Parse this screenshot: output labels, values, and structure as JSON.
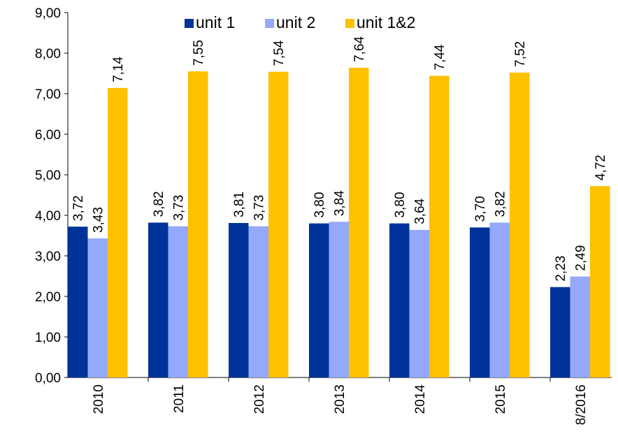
{
  "chart_data": {
    "type": "bar",
    "categories": [
      "2010",
      "2011",
      "2012",
      "2013",
      "2014",
      "2015",
      "8/2016"
    ],
    "series": [
      {
        "name": "unit 1",
        "color": "#003399",
        "values": [
          3.72,
          3.82,
          3.81,
          3.8,
          3.8,
          3.7,
          2.23
        ],
        "value_labels": [
          "3,72",
          "3,82",
          "3,81",
          "3,80",
          "3,80",
          "3,70",
          "2,23"
        ]
      },
      {
        "name": "unit 2",
        "color": "#94a9fb",
        "values": [
          3.43,
          3.73,
          3.73,
          3.84,
          3.64,
          3.82,
          2.49
        ],
        "value_labels": [
          "3,43",
          "3,73",
          "3,73",
          "3,84",
          "3,64",
          "3,82",
          "2,49"
        ]
      },
      {
        "name": "unit 1&2",
        "color": "#ffc000",
        "values": [
          7.14,
          7.55,
          7.54,
          7.64,
          7.44,
          7.52,
          4.72
        ],
        "value_labels": [
          "7,14",
          "7,55",
          "7,54",
          "7,64",
          "7,44",
          "7,52",
          "4,72"
        ]
      }
    ],
    "ylim": [
      0,
      9
    ],
    "yticks": [
      {
        "value": 0,
        "label": "0,00"
      },
      {
        "value": 1,
        "label": "1,00"
      },
      {
        "value": 2,
        "label": "2,00"
      },
      {
        "value": 3,
        "label": "3,00"
      },
      {
        "value": 4,
        "label": "4,00"
      },
      {
        "value": 5,
        "label": "5,00"
      },
      {
        "value": 6,
        "label": "6,00"
      },
      {
        "value": 7,
        "label": "7,00"
      },
      {
        "value": 8,
        "label": "8,00"
      },
      {
        "value": 9,
        "label": "9,00"
      }
    ],
    "legend": "top"
  }
}
